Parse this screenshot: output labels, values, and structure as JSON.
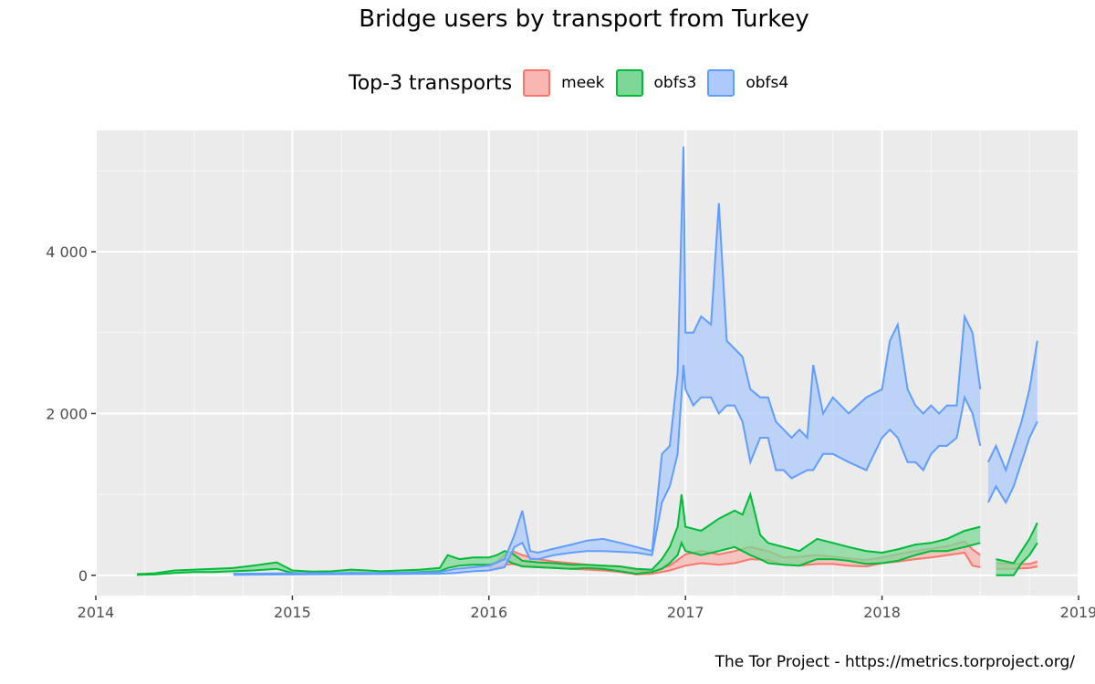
{
  "chart_data": {
    "type": "area",
    "title": "Bridge users by transport from Turkey",
    "legend_title": "Top-3 transports",
    "legend_position": "top",
    "caption": "The Tor Project - https://metrics.torproject.org/",
    "xlabel": "",
    "ylabel": "",
    "xlim": [
      2014.0,
      2019.0
    ],
    "ylim": [
      -250,
      5500
    ],
    "x_ticks": [
      2014,
      2015,
      2016,
      2017,
      2018,
      2019
    ],
    "x_tick_labels": [
      "2014",
      "2015",
      "2016",
      "2017",
      "2018",
      "2019"
    ],
    "y_ticks": [
      0,
      2000,
      4000
    ],
    "y_tick_labels": [
      "0",
      "2 000",
      "4 000"
    ],
    "grid": true,
    "series": [
      {
        "name": "meek",
        "color": "#f8766d",
        "fill": "#f8b7b1",
        "points": [
          [
            2016.0,
            60,
            90
          ],
          [
            2016.04,
            90,
            160
          ],
          [
            2016.08,
            130,
            260
          ],
          [
            2016.12,
            140,
            300
          ],
          [
            2016.17,
            120,
            250
          ],
          [
            2016.25,
            110,
            200
          ],
          [
            2016.33,
            90,
            170
          ],
          [
            2016.42,
            80,
            150
          ],
          [
            2016.5,
            70,
            130
          ],
          [
            2016.58,
            60,
            120
          ],
          [
            2016.67,
            40,
            110
          ],
          [
            2016.75,
            10,
            60
          ],
          [
            2016.83,
            20,
            50
          ],
          [
            2016.92,
            60,
            120
          ],
          [
            2017.0,
            120,
            260
          ],
          [
            2017.08,
            150,
            300
          ],
          [
            2017.17,
            130,
            260
          ],
          [
            2017.25,
            150,
            300
          ],
          [
            2017.33,
            200,
            350
          ],
          [
            2017.42,
            190,
            300
          ],
          [
            2017.5,
            130,
            220
          ],
          [
            2017.58,
            120,
            230
          ],
          [
            2017.67,
            140,
            250
          ],
          [
            2017.75,
            140,
            230
          ],
          [
            2017.83,
            120,
            210
          ],
          [
            2017.92,
            110,
            190
          ],
          [
            2018.0,
            150,
            220
          ],
          [
            2018.08,
            170,
            260
          ],
          [
            2018.17,
            200,
            300
          ],
          [
            2018.25,
            220,
            330
          ],
          [
            2018.33,
            250,
            360
          ],
          [
            2018.42,
            280,
            420
          ],
          [
            2018.46,
            120,
            320
          ],
          [
            2018.5,
            100,
            250
          ],
          [
            2018.54,
            0,
            0
          ],
          [
            2018.58,
            80,
            150
          ],
          [
            2018.67,
            80,
            140
          ],
          [
            2018.75,
            90,
            140
          ],
          [
            2018.79,
            110,
            170
          ]
        ]
      },
      {
        "name": "obfs3",
        "color": "#00ba38",
        "fill": "#7dd898",
        "points": [
          [
            2014.21,
            5,
            15
          ],
          [
            2014.3,
            10,
            25
          ],
          [
            2014.4,
            30,
            60
          ],
          [
            2014.5,
            40,
            70
          ],
          [
            2014.6,
            40,
            80
          ],
          [
            2014.7,
            50,
            90
          ],
          [
            2014.8,
            60,
            120
          ],
          [
            2014.92,
            80,
            160
          ],
          [
            2015.0,
            30,
            60
          ],
          [
            2015.1,
            20,
            45
          ],
          [
            2015.2,
            20,
            50
          ],
          [
            2015.3,
            30,
            70
          ],
          [
            2015.38,
            20,
            60
          ],
          [
            2015.45,
            30,
            50
          ],
          [
            2015.55,
            30,
            60
          ],
          [
            2015.65,
            40,
            70
          ],
          [
            2015.75,
            50,
            90
          ],
          [
            2015.79,
            90,
            250
          ],
          [
            2015.85,
            120,
            200
          ],
          [
            2015.92,
            130,
            220
          ],
          [
            2016.0,
            130,
            220
          ],
          [
            2016.04,
            150,
            250
          ],
          [
            2016.08,
            200,
            300
          ],
          [
            2016.12,
            150,
            270
          ],
          [
            2016.17,
            110,
            180
          ],
          [
            2016.25,
            100,
            160
          ],
          [
            2016.33,
            90,
            150
          ],
          [
            2016.42,
            80,
            130
          ],
          [
            2016.5,
            90,
            130
          ],
          [
            2016.58,
            80,
            120
          ],
          [
            2016.67,
            50,
            110
          ],
          [
            2016.75,
            20,
            80
          ],
          [
            2016.83,
            40,
            70
          ],
          [
            2016.88,
            80,
            200
          ],
          [
            2016.92,
            150,
            350
          ],
          [
            2016.96,
            250,
            600
          ],
          [
            2016.98,
            400,
            1000
          ],
          [
            2017.0,
            300,
            600
          ],
          [
            2017.08,
            250,
            550
          ],
          [
            2017.17,
            300,
            700
          ],
          [
            2017.25,
            350,
            800
          ],
          [
            2017.29,
            300,
            750
          ],
          [
            2017.33,
            250,
            1000
          ],
          [
            2017.38,
            200,
            500
          ],
          [
            2017.42,
            150,
            400
          ],
          [
            2017.5,
            130,
            350
          ],
          [
            2017.58,
            120,
            300
          ],
          [
            2017.67,
            200,
            450
          ],
          [
            2017.75,
            200,
            400
          ],
          [
            2017.83,
            180,
            350
          ],
          [
            2017.92,
            140,
            300
          ],
          [
            2018.0,
            150,
            280
          ],
          [
            2018.08,
            180,
            320
          ],
          [
            2018.17,
            250,
            380
          ],
          [
            2018.25,
            300,
            400
          ],
          [
            2018.33,
            300,
            450
          ],
          [
            2018.42,
            350,
            550
          ],
          [
            2018.5,
            400,
            600
          ],
          [
            2018.51,
            0,
            0
          ],
          [
            2018.58,
            0,
            200
          ],
          [
            2018.67,
            0,
            150
          ],
          [
            2018.71,
            150,
            300
          ],
          [
            2018.75,
            250,
            450
          ],
          [
            2018.79,
            400,
            650
          ]
        ]
      },
      {
        "name": "obfs4",
        "color": "#619cff",
        "fill": "#aec9fb",
        "points": [
          [
            2014.7,
            5,
            20
          ],
          [
            2015.0,
            10,
            25
          ],
          [
            2015.5,
            15,
            30
          ],
          [
            2015.75,
            20,
            40
          ],
          [
            2015.83,
            30,
            80
          ],
          [
            2015.92,
            50,
            100
          ],
          [
            2016.0,
            60,
            120
          ],
          [
            2016.08,
            100,
            200
          ],
          [
            2016.13,
            350,
            500
          ],
          [
            2016.17,
            400,
            800
          ],
          [
            2016.21,
            200,
            300
          ],
          [
            2016.25,
            200,
            280
          ],
          [
            2016.33,
            250,
            330
          ],
          [
            2016.42,
            280,
            380
          ],
          [
            2016.5,
            300,
            430
          ],
          [
            2016.58,
            300,
            450
          ],
          [
            2016.67,
            290,
            400
          ],
          [
            2016.75,
            280,
            350
          ],
          [
            2016.83,
            250,
            300
          ],
          [
            2016.88,
            900,
            1500
          ],
          [
            2016.92,
            1100,
            1600
          ],
          [
            2016.96,
            1500,
            2500
          ],
          [
            2016.99,
            2600,
            5300
          ],
          [
            2017.0,
            2300,
            3000
          ],
          [
            2017.04,
            2100,
            3000
          ],
          [
            2017.08,
            2200,
            3200
          ],
          [
            2017.13,
            2200,
            3100
          ],
          [
            2017.17,
            2000,
            4600
          ],
          [
            2017.21,
            2100,
            2900
          ],
          [
            2017.25,
            2100,
            2800
          ],
          [
            2017.29,
            1900,
            2700
          ],
          [
            2017.33,
            1400,
            2300
          ],
          [
            2017.38,
            1700,
            2200
          ],
          [
            2017.42,
            1700,
            2200
          ],
          [
            2017.46,
            1300,
            1900
          ],
          [
            2017.5,
            1300,
            1800
          ],
          [
            2017.54,
            1200,
            1700
          ],
          [
            2017.58,
            1250,
            1800
          ],
          [
            2017.62,
            1300,
            1700
          ],
          [
            2017.65,
            1300,
            2600
          ],
          [
            2017.7,
            1500,
            2000
          ],
          [
            2017.75,
            1500,
            2200
          ],
          [
            2017.83,
            1400,
            2000
          ],
          [
            2017.92,
            1300,
            2200
          ],
          [
            2018.0,
            1700,
            2300
          ],
          [
            2018.04,
            1800,
            2900
          ],
          [
            2018.08,
            1700,
            3100
          ],
          [
            2018.13,
            1400,
            2300
          ],
          [
            2018.17,
            1400,
            2100
          ],
          [
            2018.21,
            1300,
            2000
          ],
          [
            2018.25,
            1500,
            2100
          ],
          [
            2018.29,
            1600,
            2000
          ],
          [
            2018.33,
            1600,
            2100
          ],
          [
            2018.38,
            1700,
            2100
          ],
          [
            2018.42,
            2200,
            3200
          ],
          [
            2018.46,
            2000,
            3000
          ],
          [
            2018.5,
            1600,
            2300
          ],
          [
            2018.51,
            0,
            0
          ],
          [
            2018.54,
            900,
            1400
          ],
          [
            2018.58,
            1100,
            1600
          ],
          [
            2018.63,
            900,
            1300
          ],
          [
            2018.67,
            1100,
            1600
          ],
          [
            2018.71,
            1400,
            1900
          ],
          [
            2018.75,
            1700,
            2300
          ],
          [
            2018.79,
            1900,
            2900
          ]
        ]
      }
    ]
  }
}
